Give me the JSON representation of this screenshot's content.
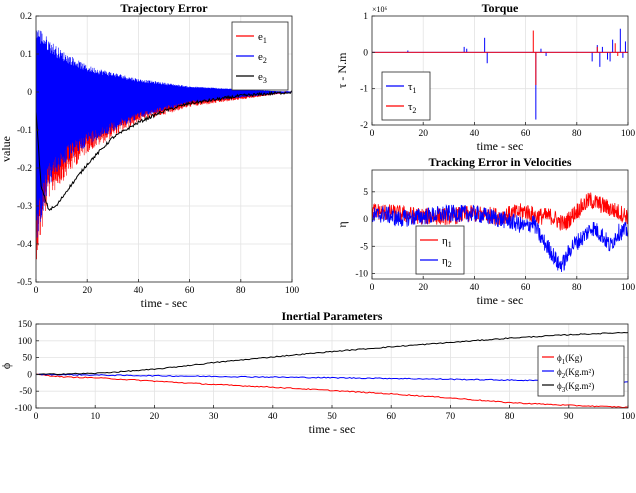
{
  "chart_data": [
    {
      "type": "line",
      "title": "Trajectory Error",
      "xlabel": "time - sec",
      "ylabel": "value",
      "xlim": [
        0,
        100
      ],
      "ylim": [
        -0.5,
        0.2
      ],
      "xticks": [
        "0",
        "20",
        "40",
        "60",
        "80",
        "100"
      ],
      "yticks": [
        "0.2",
        "0.1",
        "0",
        "-0.1",
        "-0.2",
        "-0.3",
        "-0.4",
        "-0.5"
      ],
      "grid": true,
      "legend_position": "top-right",
      "series": [
        {
          "name": "e1",
          "label_main": "e",
          "label_sub": "1",
          "color": "#ff0000",
          "envelope_upper_at_x": [
            [
              0,
              0.12
            ],
            [
              5,
              0.05
            ],
            [
              10,
              0.03
            ],
            [
              20,
              0.015
            ],
            [
              40,
              0.005
            ],
            [
              60,
              0.0
            ],
            [
              100,
              0.0
            ]
          ],
          "envelope_lower_at_x": [
            [
              0,
              -0.45
            ],
            [
              5,
              -0.28
            ],
            [
              10,
              -0.24
            ],
            [
              20,
              -0.16
            ],
            [
              40,
              -0.08
            ],
            [
              60,
              -0.04
            ],
            [
              100,
              0.0
            ]
          ]
        },
        {
          "name": "e2",
          "label_main": "e",
          "label_sub": "2",
          "color": "#0000ff",
          "envelope_upper_at_x": [
            [
              0,
              0.18
            ],
            [
              5,
              0.14
            ],
            [
              10,
              0.11
            ],
            [
              20,
              0.07
            ],
            [
              40,
              0.035
            ],
            [
              60,
              0.015
            ],
            [
              100,
              0.0
            ]
          ],
          "envelope_lower_at_x": [
            [
              0,
              -0.4
            ],
            [
              5,
              -0.25
            ],
            [
              10,
              -0.2
            ],
            [
              20,
              -0.14
            ],
            [
              40,
              -0.07
            ],
            [
              60,
              -0.03
            ],
            [
              100,
              0.0
            ]
          ]
        },
        {
          "name": "e3",
          "label_main": "e",
          "label_sub": "3",
          "color": "#000000",
          "points": [
            [
              0,
              -0.05
            ],
            [
              2,
              -0.25
            ],
            [
              5,
              -0.31
            ],
            [
              8,
              -0.3
            ],
            [
              12,
              -0.26
            ],
            [
              20,
              -0.19
            ],
            [
              30,
              -0.12
            ],
            [
              40,
              -0.08
            ],
            [
              50,
              -0.05
            ],
            [
              60,
              -0.03
            ],
            [
              80,
              -0.01
            ],
            [
              100,
              0.0
            ]
          ]
        }
      ]
    },
    {
      "type": "line",
      "title": "Torque",
      "xlabel": "time - sec",
      "ylabel": "τ - N.m",
      "xlim": [
        0,
        100
      ],
      "ylim": [
        -2,
        1
      ],
      "exponent_label": "×10⁶",
      "xticks": [
        "0",
        "20",
        "40",
        "60",
        "80",
        "100"
      ],
      "yticks": [
        "1",
        "0",
        "-1",
        "-2"
      ],
      "grid": true,
      "legend_position": "bottom-left",
      "series": [
        {
          "name": "τ1",
          "label_main": "τ",
          "label_sub": "1",
          "color": "#0000ff",
          "spikes": [
            [
              14,
              0.05
            ],
            [
              36,
              0.15
            ],
            [
              37,
              0.1
            ],
            [
              44,
              0.4
            ],
            [
              45,
              -0.3
            ],
            [
              64,
              -1.85
            ],
            [
              66,
              0.1
            ],
            [
              68,
              -0.1
            ],
            [
              86,
              -0.25
            ],
            [
              88,
              0.2
            ],
            [
              89,
              -0.4
            ],
            [
              90,
              0.15
            ],
            [
              92,
              -0.2
            ],
            [
              93,
              -0.25
            ],
            [
              94,
              0.35
            ],
            [
              97,
              0.65
            ],
            [
              98,
              -0.15
            ],
            [
              99,
              0.3
            ]
          ]
        },
        {
          "name": "τ2",
          "label_main": "τ",
          "label_sub": "2",
          "color": "#ff0000",
          "spikes": [
            [
              63,
              0.6
            ],
            [
              64,
              -0.9
            ],
            [
              88,
              0.15
            ],
            [
              95,
              0.25
            ],
            [
              96,
              -0.1
            ]
          ]
        }
      ]
    },
    {
      "type": "line",
      "title": "Tracking Error in Velocities",
      "xlabel": "time - sec",
      "ylabel": "η",
      "xlim": [
        0,
        100
      ],
      "ylim": [
        -11,
        9
      ],
      "xticks": [
        "0",
        "20",
        "40",
        "60",
        "80",
        "100"
      ],
      "yticks": [
        "5",
        "0",
        "-5",
        "-10"
      ],
      "grid": true,
      "legend_position": "bottom-left",
      "series": [
        {
          "name": "η1",
          "label_main": "η",
          "label_sub": "1",
          "color": "#ff0000",
          "points": [
            [
              0,
              1.5
            ],
            [
              10,
              1.0
            ],
            [
              20,
              0.5
            ],
            [
              30,
              0.5
            ],
            [
              40,
              1.0
            ],
            [
              50,
              0.5
            ],
            [
              60,
              1.5
            ],
            [
              64,
              0.5
            ],
            [
              70,
              0.5
            ],
            [
              75,
              -1.0
            ],
            [
              80,
              1.5
            ],
            [
              85,
              3.5
            ],
            [
              90,
              2.5
            ],
            [
              95,
              1.5
            ],
            [
              100,
              0.5
            ]
          ]
        },
        {
          "name": "η2",
          "label_main": "η",
          "label_sub": "2",
          "color": "#0000ff",
          "points": [
            [
              0,
              0.5
            ],
            [
              5,
              1.0
            ],
            [
              10,
              0.0
            ],
            [
              20,
              0.5
            ],
            [
              30,
              1.0
            ],
            [
              40,
              1.0
            ],
            [
              50,
              0.0
            ],
            [
              55,
              -0.5
            ],
            [
              60,
              -1.5
            ],
            [
              63,
              -0.5
            ],
            [
              66,
              -3.5
            ],
            [
              70,
              -6.0
            ],
            [
              73,
              -8.5
            ],
            [
              75,
              -8.0
            ],
            [
              78,
              -5.0
            ],
            [
              82,
              -3.5
            ],
            [
              86,
              -1.5
            ],
            [
              90,
              -3.0
            ],
            [
              93,
              -5.0
            ],
            [
              96,
              -2.5
            ],
            [
              100,
              -2.0
            ]
          ]
        }
      ]
    },
    {
      "type": "line",
      "title": "Inertial Parameters",
      "xlabel": "time - sec",
      "ylabel": "ϕ",
      "xlim": [
        0,
        100
      ],
      "ylim": [
        -100,
        150
      ],
      "xticks": [
        "0",
        "10",
        "20",
        "30",
        "40",
        "50",
        "60",
        "70",
        "80",
        "90",
        "100"
      ],
      "yticks": [
        "150",
        "100",
        "50",
        "0",
        "-50",
        "-100"
      ],
      "grid": true,
      "legend_position": "right",
      "series": [
        {
          "name": "ϕ1(Kg)",
          "label_main": "ϕ",
          "label_sub": "1",
          "label_rest": "(Kg)",
          "color": "#ff0000",
          "points": [
            [
              0,
              0
            ],
            [
              5,
              -8
            ],
            [
              10,
              -10
            ],
            [
              20,
              -20
            ],
            [
              30,
              -30
            ],
            [
              40,
              -38
            ],
            [
              50,
              -48
            ],
            [
              60,
              -58
            ],
            [
              70,
              -70
            ],
            [
              80,
              -84
            ],
            [
              90,
              -92
            ],
            [
              100,
              -98
            ]
          ]
        },
        {
          "name": "ϕ2(Kg.m²)",
          "label_main": "ϕ",
          "label_sub": "2",
          "label_rest": "(Kg.m²)",
          "color": "#0000ff",
          "points": [
            [
              0,
              0
            ],
            [
              20,
              -4
            ],
            [
              40,
              -8
            ],
            [
              60,
              -12
            ],
            [
              80,
              -17
            ],
            [
              100,
              -22
            ]
          ]
        },
        {
          "name": "ϕ3(Kg.m²)",
          "label_main": "ϕ",
          "label_sub": "3",
          "label_rest": "(Kg.m²)",
          "color": "#000000",
          "points": [
            [
              0,
              0
            ],
            [
              10,
              3
            ],
            [
              20,
              15
            ],
            [
              30,
              35
            ],
            [
              40,
              52
            ],
            [
              50,
              68
            ],
            [
              60,
              82
            ],
            [
              70,
              95
            ],
            [
              80,
              108
            ],
            [
              90,
              118
            ],
            [
              100,
              125
            ]
          ]
        }
      ]
    }
  ]
}
